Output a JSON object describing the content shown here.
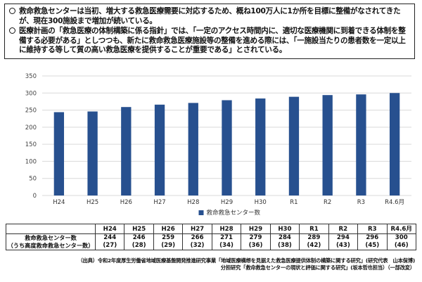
{
  "bullets": [
    {
      "text": "救命救急センターは当初、増大する救急医療需要に対応するため、概ね100万人に1か所を目標に整備がなされてきたが、現在300施設まで増加が続いている。"
    },
    {
      "text": "医療計画の「救急医療の体制構築に係る指針」では、「一定のアクセス時間内に、適切な医療機関に到着できる体制を整備する必要がある」としつつも、新たに救命救急医療施設等の整備を進める際には、「一施設当たりの患者数を一定以上に維持する等して質の高い救急医療を提供することが重要である」とされている。"
    }
  ],
  "chart_data": {
    "type": "bar",
    "categories": [
      "H24",
      "H25",
      "H26",
      "H27",
      "H28",
      "H29",
      "H30",
      "R1",
      "R2",
      "R3",
      "R4.6月"
    ],
    "series": [
      {
        "name": "救命救急センター数",
        "values": [
          244,
          246,
          259,
          266,
          271,
          279,
          284,
          289,
          294,
          296,
          300
        ]
      }
    ],
    "ylim": [
      0,
      350
    ],
    "yticks": [
      0,
      50,
      100,
      150,
      200,
      250,
      300,
      350
    ],
    "grid": true,
    "legend_position": "bottom",
    "bar_color": "#27508f",
    "grid_color": "#d9d9d9",
    "title": "",
    "xlabel": "",
    "ylabel": ""
  },
  "table": {
    "header_label": "救命救急センター数",
    "sub_label": "（うち高度救命救急センター数）",
    "columns": [
      "H24",
      "H25",
      "H26",
      "H27",
      "H28",
      "H29",
      "H30",
      "R1",
      "R2",
      "R3",
      "R4.6月"
    ],
    "counts": [
      "244",
      "246",
      "259",
      "266",
      "271",
      "279",
      "284",
      "289",
      "294",
      "296",
      "300"
    ],
    "sub_counts": [
      "(27)",
      "(28)",
      "(29)",
      "(32)",
      "(34)",
      "(36)",
      "(38)",
      "(42)",
      "(43)",
      "(45)",
      "(46)"
    ]
  },
  "footnote": {
    "line1": "（出典）令和2年度厚生労働省地域医療基盤開発推進研究事業「地域医療構想を見据えた救急医療提供体制の構築に関する研究」(研究代表　山本保博)",
    "line2": "分担研究「救命救急センターの現状と評価に関する研究」(坂本哲也担当）（一部改変）"
  }
}
